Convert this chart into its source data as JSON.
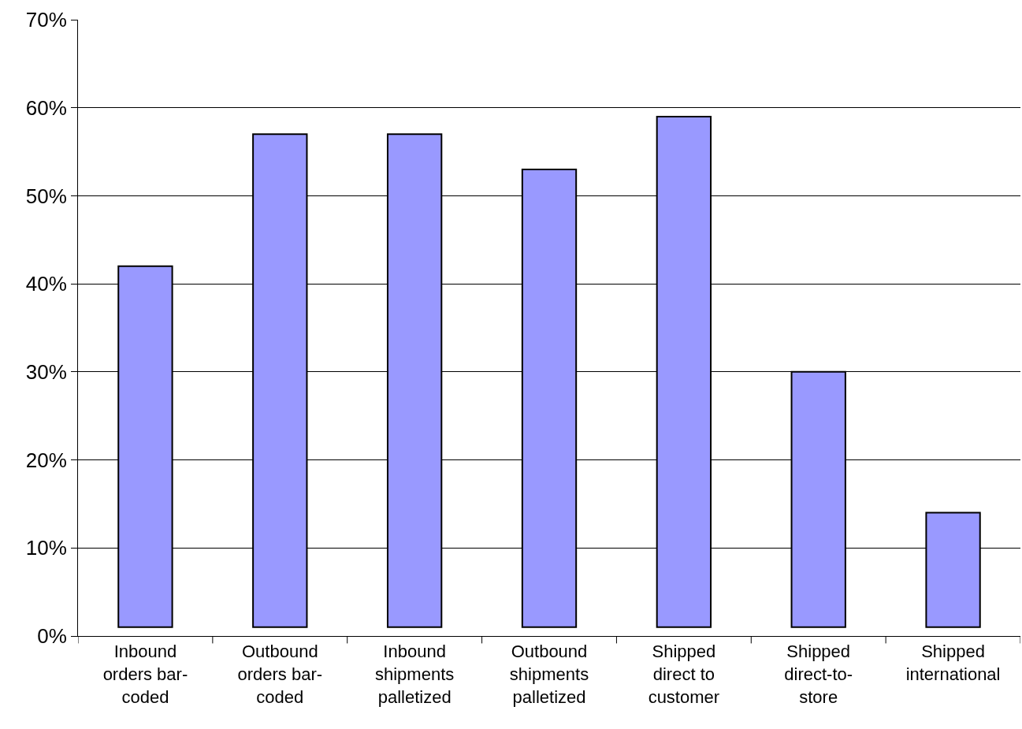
{
  "chart_data": {
    "type": "bar",
    "categories": [
      "Inbound orders bar-coded",
      "Outbound orders bar-coded",
      "Inbound shipments palletized",
      "Outbound shipments palletized",
      "Shipped direct to customer",
      "Shipped direct-to-store",
      "Shipped international"
    ],
    "base": [
      1,
      1,
      1,
      1,
      1,
      1,
      1
    ],
    "values": [
      41,
      56,
      56,
      52,
      58,
      29,
      13
    ],
    "color": "#9999ff",
    "ylim": [
      0,
      70
    ],
    "yticks": [
      {
        "value": 0,
        "label": "0%"
      },
      {
        "value": 10,
        "label": "10%"
      },
      {
        "value": 20,
        "label": "20%"
      },
      {
        "value": 30,
        "label": "30%"
      },
      {
        "value": 40,
        "label": "40%"
      },
      {
        "value": 50,
        "label": "50%"
      },
      {
        "value": 60,
        "label": "60%"
      },
      {
        "value": 70,
        "label": "70%"
      }
    ],
    "grid": "y"
  }
}
